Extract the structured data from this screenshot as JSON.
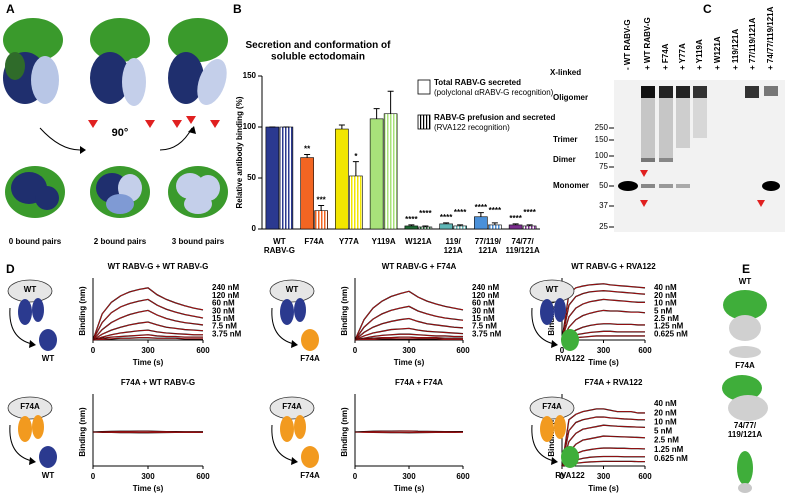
{
  "panel_labels": [
    "A",
    "B",
    "C",
    "D",
    "E"
  ],
  "panel_a": {
    "angle": "90°",
    "captions": [
      "0 bound pairs",
      "2 bound pairs",
      "3 bound pairs"
    ]
  },
  "chart_data": [
    {
      "type": "bar",
      "title": "Secretion and conformation of\nsoluble ectodomain",
      "ylabel": "Relative antibody binding (%)",
      "categories": [
        "WT\nRABV-G",
        "F74A",
        "Y77A",
        "Y119A",
        "W121A",
        "119/\n121A",
        "77/119/\n121A",
        "74/77/\n119/121A"
      ],
      "category_colors": [
        "#2b3990",
        "#f26522",
        "#f2e600",
        "#a8e27a",
        "#1e6b35",
        "#5fb7b7",
        "#4a90d9",
        "#7b2d8e"
      ],
      "ylim": [
        0,
        150
      ],
      "yticks": [
        0,
        50,
        100,
        150
      ],
      "series": [
        {
          "name": "Total RABV-G secreted",
          "note": "(polyclonal αRABV-G recognition)",
          "fill": "solid",
          "values": [
            100,
            70,
            98,
            108,
            3,
            5,
            12,
            4
          ],
          "errors": [
            0,
            3,
            4,
            10,
            1,
            1,
            4,
            1
          ],
          "significance": [
            null,
            "**",
            null,
            null,
            "****",
            "****",
            "****",
            "****"
          ]
        },
        {
          "name": "RABV-G prefusion and secreted",
          "note": "(RVA122 recognition)",
          "fill": "hatched",
          "values": [
            100,
            18,
            52,
            113,
            2,
            3,
            4,
            3
          ],
          "errors": [
            0,
            5,
            14,
            22,
            1,
            1,
            2,
            1
          ],
          "significance": [
            null,
            "***",
            "*",
            null,
            "****",
            "****",
            "****",
            "****"
          ]
        }
      ]
    },
    {
      "type": "line",
      "title": "WT RABV-G + WT RABV-G",
      "xlabel": "Time (s)",
      "ylabel": "Binding (nm)",
      "x": [
        0,
        50,
        100,
        150,
        200,
        250,
        300,
        350,
        400,
        450,
        500,
        550,
        600
      ],
      "xlim": [
        0,
        600
      ],
      "xticks": [
        0,
        300,
        600
      ],
      "ylim": [
        0,
        1.0
      ],
      "fit_color": "#e41a1c",
      "series": [
        {
          "name": "240 nM",
          "color": "#000000",
          "values": [
            0,
            0.45,
            0.65,
            0.76,
            0.83,
            0.87,
            0.9,
            0.78,
            0.7,
            0.64,
            0.59,
            0.55,
            0.52
          ]
        },
        {
          "name": "120 nM",
          "color": "#000000",
          "values": [
            0,
            0.3,
            0.47,
            0.57,
            0.63,
            0.67,
            0.7,
            0.6,
            0.53,
            0.48,
            0.44,
            0.41,
            0.38
          ]
        },
        {
          "name": "60 nM",
          "color": "#000000",
          "values": [
            0,
            0.18,
            0.3,
            0.38,
            0.44,
            0.48,
            0.51,
            0.43,
            0.37,
            0.33,
            0.3,
            0.28,
            0.26
          ]
        },
        {
          "name": "30 nM",
          "color": "#000000",
          "values": [
            0,
            0.1,
            0.17,
            0.22,
            0.26,
            0.29,
            0.31,
            0.26,
            0.22,
            0.2,
            0.18,
            0.17,
            0.16
          ]
        },
        {
          "name": "15 nM",
          "color": "#000000",
          "values": [
            0,
            0.05,
            0.09,
            0.12,
            0.14,
            0.16,
            0.17,
            0.14,
            0.12,
            0.11,
            0.1,
            0.09,
            0.09
          ]
        },
        {
          "name": "7.5 nM",
          "color": "#000000",
          "values": [
            0,
            0.03,
            0.05,
            0.06,
            0.07,
            0.08,
            0.09,
            0.07,
            0.06,
            0.06,
            0.05,
            0.05,
            0.05
          ]
        },
        {
          "name": "3.75 nM",
          "color": "#000000",
          "values": [
            0,
            0.01,
            0.02,
            0.03,
            0.03,
            0.04,
            0.04,
            0.03,
            0.03,
            0.03,
            0.02,
            0.02,
            0.02
          ]
        }
      ]
    },
    {
      "type": "line",
      "title": "WT RABV-G + F74A",
      "xlabel": "Time (s)",
      "ylabel": "Binding (nm)",
      "x": [
        0,
        50,
        100,
        150,
        200,
        250,
        300,
        350,
        400,
        450,
        500,
        550,
        600
      ],
      "xlim": [
        0,
        600
      ],
      "xticks": [
        0,
        300,
        600
      ],
      "ylim": [
        0,
        1.0
      ],
      "fit_color": "#e41a1c",
      "series": [
        {
          "name": "240 nM",
          "color": "#000000",
          "values": [
            0,
            0.35,
            0.55,
            0.67,
            0.75,
            0.8,
            0.84,
            0.74,
            0.67,
            0.62,
            0.58,
            0.55,
            0.52
          ]
        },
        {
          "name": "120 nM",
          "color": "#000000",
          "values": [
            0,
            0.22,
            0.36,
            0.45,
            0.51,
            0.55,
            0.58,
            0.5,
            0.45,
            0.41,
            0.38,
            0.36,
            0.34
          ]
        },
        {
          "name": "60 nM",
          "color": "#000000",
          "values": [
            0,
            0.13,
            0.22,
            0.28,
            0.32,
            0.35,
            0.37,
            0.32,
            0.28,
            0.26,
            0.24,
            0.22,
            0.21
          ]
        },
        {
          "name": "30 nM",
          "color": "#000000",
          "values": [
            0,
            0.07,
            0.12,
            0.15,
            0.18,
            0.19,
            0.2,
            0.17,
            0.15,
            0.14,
            0.13,
            0.12,
            0.11
          ]
        },
        {
          "name": "15 nM",
          "color": "#000000",
          "values": [
            0,
            0.03,
            0.06,
            0.08,
            0.09,
            0.1,
            0.1,
            0.09,
            0.08,
            0.07,
            0.07,
            0.06,
            0.06
          ]
        },
        {
          "name": "7.5 nM",
          "color": "#000000",
          "values": [
            0,
            0.02,
            0.03,
            0.04,
            0.04,
            0.05,
            0.05,
            0.04,
            0.04,
            0.04,
            0.03,
            0.03,
            0.03
          ]
        },
        {
          "name": "3.75 nM",
          "color": "#000000",
          "values": [
            0,
            0.01,
            0.01,
            0.02,
            0.02,
            0.02,
            0.02,
            0.02,
            0.02,
            0.02,
            0.01,
            0.01,
            0.01
          ]
        }
      ]
    },
    {
      "type": "line",
      "title": "WT RABV-G + RVA122",
      "xlabel": "Time (s)",
      "ylabel": "Binding (nm)",
      "x": [
        0,
        50,
        100,
        150,
        200,
        250,
        300,
        350,
        400,
        450,
        500,
        550,
        600
      ],
      "xlim": [
        0,
        600
      ],
      "xticks": [
        0,
        300,
        600
      ],
      "ylim": [
        0,
        1.0
      ],
      "fit_color": "#e41a1c",
      "series": [
        {
          "name": "40 nM",
          "color": "#000000",
          "values": [
            0,
            0.8,
            0.9,
            0.93,
            0.95,
            0.96,
            0.97,
            0.95,
            0.94,
            0.93,
            0.92,
            0.91,
            0.9
          ]
        },
        {
          "name": "20 nM",
          "color": "#000000",
          "values": [
            0,
            0.6,
            0.75,
            0.8,
            0.83,
            0.84,
            0.85,
            0.84,
            0.83,
            0.82,
            0.81,
            0.8,
            0.79
          ]
        },
        {
          "name": "10 nM",
          "color": "#000000",
          "values": [
            0,
            0.4,
            0.55,
            0.62,
            0.66,
            0.68,
            0.7,
            0.69,
            0.68,
            0.67,
            0.66,
            0.65,
            0.65
          ]
        },
        {
          "name": "5 nM",
          "color": "#000000",
          "values": [
            0,
            0.22,
            0.35,
            0.42,
            0.46,
            0.49,
            0.51,
            0.5,
            0.5,
            0.49,
            0.48,
            0.48,
            0.47
          ]
        },
        {
          "name": "2.5 nM",
          "color": "#000000",
          "values": [
            0,
            0.1,
            0.17,
            0.22,
            0.25,
            0.27,
            0.28,
            0.28,
            0.27,
            0.27,
            0.27,
            0.26,
            0.26
          ]
        },
        {
          "name": "1.25 nM",
          "color": "#000000",
          "values": [
            0,
            0.05,
            0.09,
            0.11,
            0.13,
            0.14,
            0.15,
            0.15,
            0.14,
            0.14,
            0.14,
            0.14,
            0.14
          ]
        },
        {
          "name": "0.625 nM",
          "color": "#000000",
          "values": [
            0,
            0.02,
            0.04,
            0.05,
            0.06,
            0.07,
            0.07,
            0.07,
            0.07,
            0.07,
            0.07,
            0.07,
            0.07
          ]
        }
      ]
    },
    {
      "type": "line",
      "title": "F74A +  WT RABV-G",
      "xlabel": "Time (s)",
      "ylabel": "Binding (nm)",
      "x": [
        0,
        50,
        100,
        150,
        200,
        250,
        300,
        350,
        400,
        450,
        500,
        550,
        600
      ],
      "xlim": [
        0,
        600
      ],
      "xticks": [
        0,
        300,
        600
      ],
      "ylim": [
        -0.5,
        0.5
      ],
      "fit_color": "#e41a1c",
      "series": [
        {
          "color": "#000000",
          "values": [
            0,
            0.005,
            0.008,
            0.01,
            0.01,
            0.012,
            0.012,
            0.008,
            0.006,
            0.005,
            0.004,
            0.004,
            0.003
          ]
        },
        {
          "color": "#000000",
          "values": [
            0,
            -0.005,
            -0.006,
            -0.008,
            -0.008,
            -0.01,
            -0.01,
            -0.008,
            -0.007,
            -0.006,
            -0.006,
            -0.005,
            -0.005
          ]
        }
      ]
    },
    {
      "type": "line",
      "title": "F74A + F74A",
      "xlabel": "Time (s)",
      "ylabel": "Binding (nm)",
      "x": [
        0,
        50,
        100,
        150,
        200,
        250,
        300,
        350,
        400,
        450,
        500,
        550,
        600
      ],
      "xlim": [
        0,
        600
      ],
      "xticks": [
        0,
        300,
        600
      ],
      "ylim": [
        -0.5,
        0.5
      ],
      "fit_color": "#e41a1c",
      "series": [
        {
          "color": "#000000",
          "values": [
            0,
            0.006,
            0.01,
            0.012,
            0.013,
            0.014,
            0.015,
            0.01,
            0.008,
            0.007,
            0.006,
            0.005,
            0.005
          ]
        },
        {
          "color": "#000000",
          "values": [
            0,
            -0.004,
            -0.006,
            -0.007,
            -0.008,
            -0.009,
            -0.01,
            -0.008,
            -0.007,
            -0.006,
            -0.005,
            -0.005,
            -0.004
          ]
        }
      ]
    },
    {
      "type": "line",
      "title": "F74A + RVA122",
      "xlabel": "Time (s)",
      "ylabel": "Binding (nm)",
      "x": [
        0,
        50,
        100,
        150,
        200,
        250,
        300,
        350,
        400,
        450,
        500,
        550,
        600
      ],
      "xlim": [
        0,
        600
      ],
      "xticks": [
        0,
        300,
        600
      ],
      "ylim": [
        0,
        0.25
      ],
      "fit_color": "#e41a1c",
      "series": [
        {
          "name": "40 nM",
          "color": "#000000",
          "values": [
            0,
            0.17,
            0.19,
            0.2,
            0.205,
            0.21,
            0.21,
            0.205,
            0.2,
            0.2,
            0.2,
            0.195,
            0.195
          ]
        },
        {
          "name": "20 nM",
          "color": "#000000",
          "values": [
            0,
            0.13,
            0.16,
            0.17,
            0.175,
            0.18,
            0.18,
            0.177,
            0.175,
            0.173,
            0.172,
            0.17,
            0.17
          ]
        },
        {
          "name": "10 nM",
          "color": "#000000",
          "values": [
            0,
            0.09,
            0.12,
            0.135,
            0.14,
            0.145,
            0.15,
            0.148,
            0.146,
            0.145,
            0.144,
            0.143,
            0.142
          ]
        },
        {
          "name": "5 nM",
          "color": "#000000",
          "values": [
            0,
            0.05,
            0.08,
            0.095,
            0.1,
            0.105,
            0.11,
            0.109,
            0.108,
            0.107,
            0.106,
            0.105,
            0.104
          ]
        },
        {
          "name": "2.5 nM",
          "color": "#000000",
          "values": [
            0,
            0.025,
            0.045,
            0.055,
            0.06,
            0.064,
            0.066,
            0.066,
            0.065,
            0.065,
            0.064,
            0.064,
            0.063
          ]
        },
        {
          "name": "1.25 nM",
          "color": "#000000",
          "values": [
            0,
            0.012,
            0.022,
            0.028,
            0.032,
            0.034,
            0.035,
            0.035,
            0.035,
            0.034,
            0.034,
            0.034,
            0.034
          ]
        },
        {
          "name": "0.625 nM",
          "color": "#000000",
          "values": [
            0,
            0.005,
            0.01,
            0.013,
            0.015,
            0.016,
            0.017,
            0.017,
            0.017,
            0.017,
            0.017,
            0.016,
            0.016
          ]
        }
      ]
    }
  ],
  "panel_c": {
    "lanes": [
      "- WT RABV-G",
      "+ WT RABV-G",
      "+ F74A",
      "+ Y77A",
      "+ Y119A",
      "+ W121A",
      "+ 119/121A",
      "+ 77/119/121A",
      "+ 74/77/119/121A"
    ],
    "rows": [
      "X-linked",
      "Oligomer",
      "Trimer",
      "Dimer",
      "Monomer"
    ],
    "markers": [
      "250",
      "150",
      "100",
      "75",
      "50",
      "37",
      "25"
    ]
  },
  "panel_d": {
    "icons": [
      {
        "bound": "WT",
        "analyte": "WT"
      },
      {
        "bound": "WT",
        "analyte": "F74A"
      },
      {
        "bound": "WT",
        "analyte": "RVA122"
      },
      {
        "bound": "F74A",
        "analyte": "WT"
      },
      {
        "bound": "F74A",
        "analyte": "F74A"
      },
      {
        "bound": "F74A",
        "analyte": "RVA122"
      }
    ]
  },
  "panel_e": {
    "labels": [
      "WT",
      "F74A",
      "74/77/\n119/121A"
    ]
  }
}
